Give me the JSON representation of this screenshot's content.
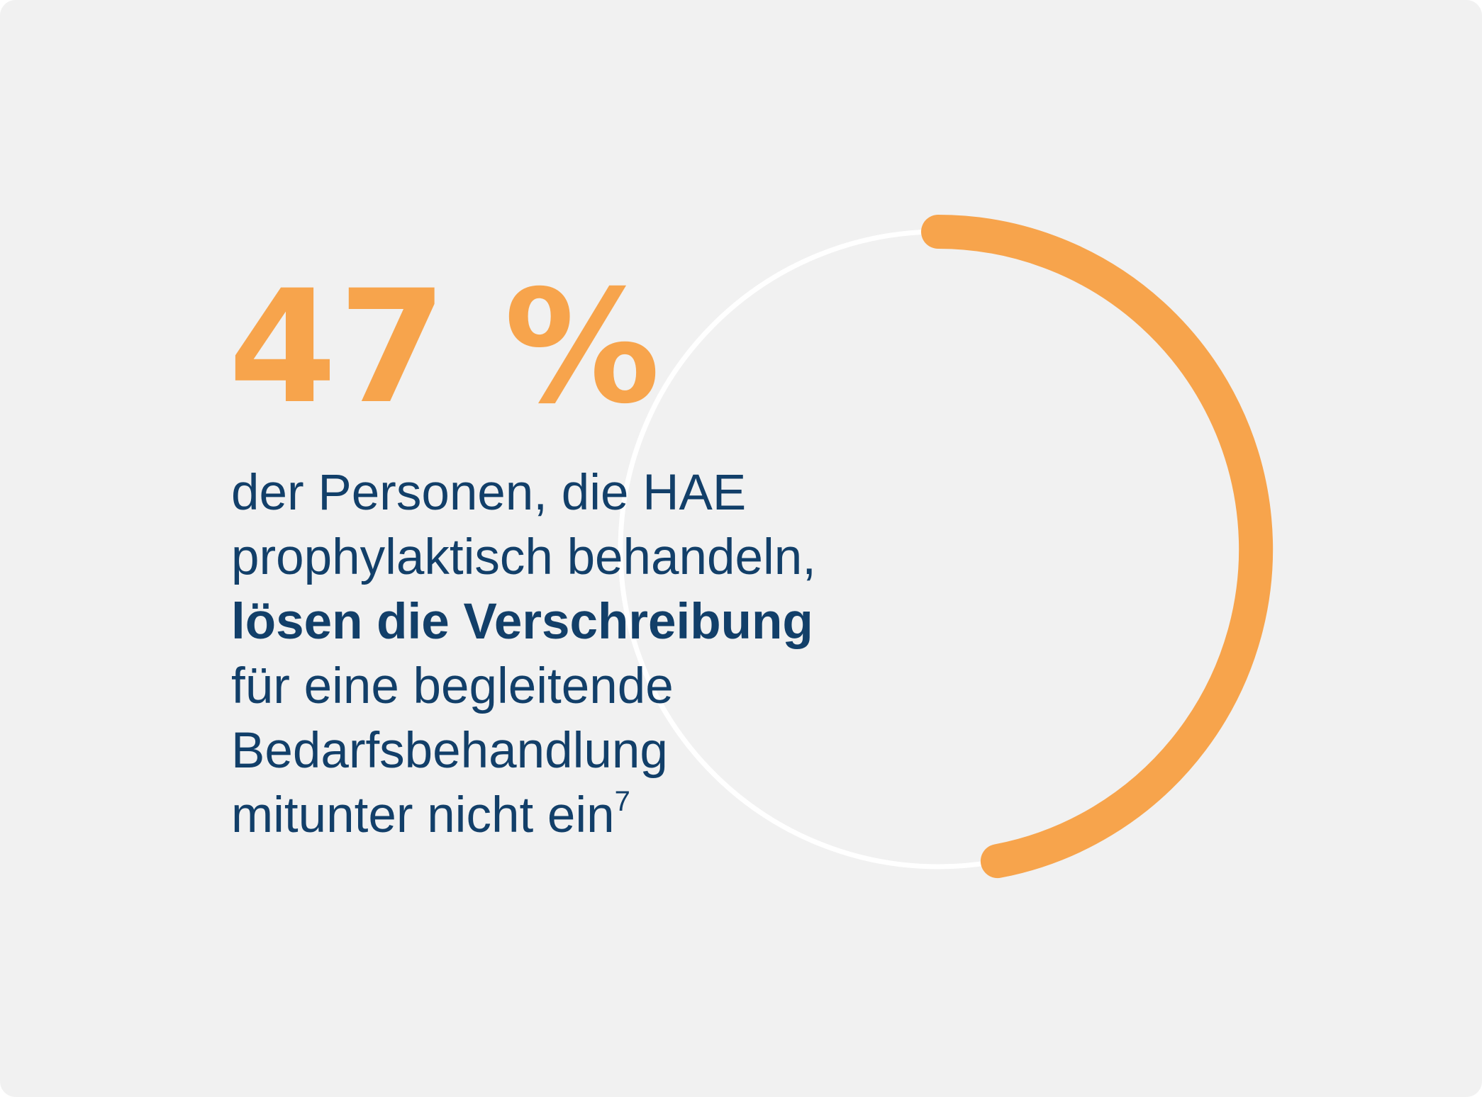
{
  "colors": {
    "background": "#f1f1f1",
    "accent_orange": "#f7a44c",
    "text_navy": "#123f69",
    "ring_track": "#ffffff"
  },
  "stat": {
    "value_label": "47 %",
    "fraction_shown": 0.47
  },
  "description": {
    "line1": "der Personen, die HAE",
    "line2": "prophylaktisch behandeln,",
    "line3_bold": "lösen die Verschreibung",
    "line4": "für eine begleitende",
    "line5": "Bedarfsbehandlung",
    "line6": "mitunter nicht ein",
    "footnote": "7"
  }
}
